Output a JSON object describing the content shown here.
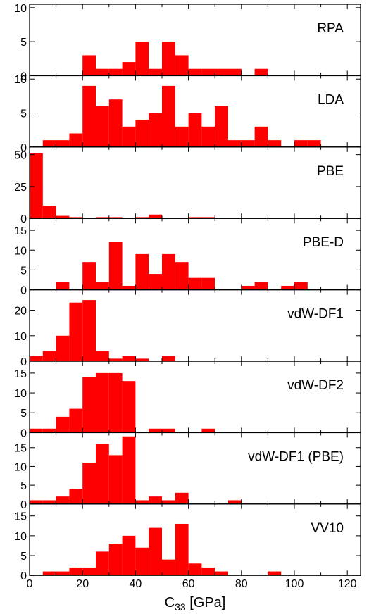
{
  "chart_data": {
    "type": "bar",
    "title": "",
    "xlabel": "C",
    "xlabel_subscript": "33",
    "xlabel_unit": " [GPa]",
    "xlim": [
      0,
      125
    ],
    "xticks": [
      0,
      20,
      40,
      60,
      80,
      100,
      120
    ],
    "bin_width": 5,
    "bar_color": "#ff0000",
    "panels": [
      {
        "name": "RPA",
        "ylim": [
          0,
          10.5
        ],
        "yticks": [
          0,
          5,
          10
        ],
        "x": [
          20,
          25,
          30,
          35,
          40,
          45,
          50,
          55,
          60,
          65,
          70,
          75,
          85
        ],
        "values": [
          3,
          1,
          1,
          2,
          5,
          1,
          5,
          3,
          1,
          1,
          1,
          1,
          1
        ]
      },
      {
        "name": "LDA",
        "ylim": [
          0,
          10.5
        ],
        "yticks": [
          0,
          5,
          10
        ],
        "x": [
          5,
          10,
          15,
          20,
          25,
          30,
          35,
          40,
          45,
          50,
          55,
          60,
          65,
          70,
          75,
          80,
          85,
          90,
          100,
          105
        ],
        "values": [
          1,
          1,
          2,
          9,
          6,
          7,
          3,
          4,
          5,
          9,
          3,
          5,
          3,
          6,
          1,
          1,
          3,
          1,
          1,
          1
        ]
      },
      {
        "name": "PBE",
        "ylim": [
          0,
          56
        ],
        "yticks": [
          0,
          25,
          50
        ],
        "x": [
          0,
          5,
          10,
          15,
          25,
          30,
          40,
          45,
          60,
          65
        ],
        "values": [
          51,
          10,
          2,
          1,
          1,
          1,
          1,
          3,
          1,
          1
        ]
      },
      {
        "name": "PBE-D",
        "ylim": [
          0,
          18
        ],
        "yticks": [
          0,
          5,
          10,
          15
        ],
        "x": [
          10,
          20,
          25,
          30,
          35,
          40,
          45,
          50,
          55,
          60,
          65,
          80,
          85,
          95,
          100
        ],
        "values": [
          2,
          7,
          2,
          12,
          1,
          9,
          4,
          9,
          7,
          3,
          3,
          1,
          2,
          1,
          2
        ]
      },
      {
        "name": "vdW-DF1",
        "ylim": [
          0,
          28
        ],
        "yticks": [
          0,
          10,
          20
        ],
        "x": [
          0,
          5,
          10,
          15,
          20,
          25,
          30,
          35,
          40,
          50
        ],
        "values": [
          2,
          4,
          10,
          23,
          24,
          4,
          1,
          2,
          1,
          2
        ]
      },
      {
        "name": "vdW-DF2",
        "ylim": [
          0,
          18
        ],
        "yticks": [
          0,
          5,
          10,
          15
        ],
        "x": [
          0,
          5,
          10,
          15,
          20,
          25,
          30,
          35,
          45,
          50,
          65
        ],
        "values": [
          1,
          1,
          4,
          6,
          14,
          15,
          15,
          13,
          1,
          1,
          1
        ]
      },
      {
        "name": "vdW-DF1 (PBE)",
        "ylim": [
          0,
          19
        ],
        "yticks": [
          0,
          5,
          10,
          15
        ],
        "x": [
          0,
          5,
          10,
          15,
          20,
          25,
          30,
          35,
          40,
          45,
          50,
          55,
          75
        ],
        "values": [
          1,
          1,
          2,
          4,
          11,
          16,
          13,
          18,
          1,
          2,
          1,
          3,
          1
        ]
      },
      {
        "name": "VV10",
        "ylim": [
          0,
          18
        ],
        "yticks": [
          0,
          5,
          10,
          15
        ],
        "x": [
          5,
          10,
          15,
          20,
          25,
          30,
          35,
          40,
          45,
          50,
          55,
          60,
          65,
          70,
          90
        ],
        "values": [
          1,
          1,
          2,
          2,
          6,
          8,
          10,
          7,
          12,
          4,
          13,
          3,
          2,
          1,
          1
        ]
      }
    ]
  }
}
